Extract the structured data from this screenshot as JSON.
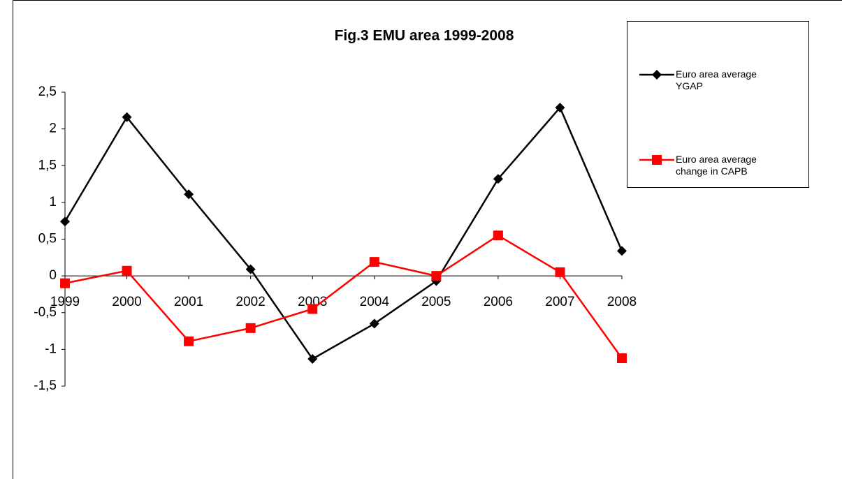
{
  "chart_data": {
    "type": "line",
    "title": "Fig.3 EMU area 1999-2008",
    "categories": [
      "1999",
      "2000",
      "2001",
      "2002",
      "2003",
      "2004",
      "2005",
      "2006",
      "2007",
      "2008"
    ],
    "series": [
      {
        "name": "Euro area average YGAP",
        "color": "#000000",
        "marker": "diamond",
        "values": [
          0.74,
          2.16,
          1.11,
          0.09,
          -1.13,
          -0.65,
          -0.07,
          1.32,
          2.29,
          0.34
        ]
      },
      {
        "name": "Euro area average change in CAPB",
        "color": "#ff0000",
        "marker": "square",
        "values": [
          -0.1,
          0.07,
          -0.89,
          -0.71,
          -0.45,
          0.19,
          0,
          0.55,
          0.05,
          -1.12
        ]
      }
    ],
    "ylim": [
      -1.5,
      2.5
    ],
    "yticks": [
      {
        "value": -1.5,
        "label": "-1,5"
      },
      -1,
      {
        "value": -0.5,
        "label": "-0,5"
      },
      0,
      {
        "value": 0.5,
        "label": "0,5"
      },
      1,
      {
        "value": 1.5,
        "label": "1,5"
      },
      2,
      {
        "value": 2.5,
        "label": "2,5"
      }
    ],
    "grid": false,
    "legend": "right"
  }
}
